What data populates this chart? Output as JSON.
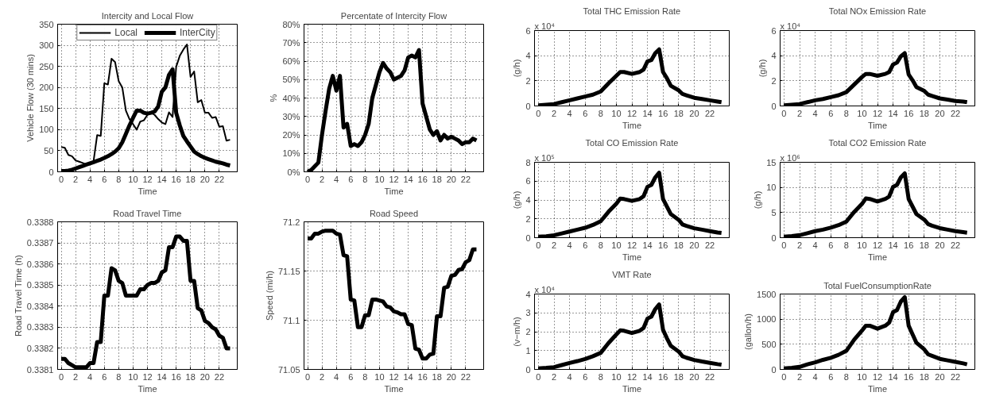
{
  "chart_data": [
    {
      "type": "line",
      "title": "Intercity and Local Flow",
      "xlabel": "Time",
      "ylabel": "Vehicle Flow (30 mins)",
      "legend": "top",
      "grid": true,
      "x": [
        0,
        0.5,
        1,
        1.5,
        2,
        2.5,
        3,
        3.5,
        4,
        4.5,
        5,
        5.5,
        6,
        6.5,
        7,
        7.5,
        8,
        8.5,
        9,
        9.5,
        10,
        10.5,
        11,
        11.5,
        12,
        12.5,
        13,
        13.5,
        14,
        14.5,
        15,
        15.5,
        16,
        16.5,
        17,
        17.5,
        18,
        18.5,
        19,
        19.5,
        20,
        20.5,
        21,
        21.5,
        22,
        22.5,
        23,
        23.5
      ],
      "xlim": [
        -0.5,
        24.5
      ],
      "xticks": [
        0,
        2,
        4,
        6,
        8,
        10,
        12,
        14,
        16,
        18,
        20,
        22
      ],
      "ylim": [
        0,
        350
      ],
      "yticks": [
        0,
        50,
        100,
        150,
        200,
        250,
        300,
        350
      ],
      "series": [
        {
          "name": "Local",
          "color": "#000000",
          "values": [
            59,
            57,
            40,
            37,
            27,
            24,
            21,
            17,
            20,
            25,
            87,
            85,
            210,
            207,
            268,
            260,
            215,
            200,
            145,
            125,
            113,
            100,
            119,
            122,
            135,
            140,
            135,
            125,
            117,
            113,
            141,
            130,
            249,
            275,
            290,
            302,
            225,
            238,
            165,
            170,
            140,
            140,
            128,
            130,
            107,
            108,
            74,
            76
          ]
        },
        {
          "name": "InterCity",
          "color": "#000000",
          "values": [
            2,
            2,
            3,
            5,
            8,
            11,
            14,
            17,
            20,
            23,
            26,
            29,
            33,
            37,
            42,
            48,
            56,
            70,
            90,
            110,
            128,
            145,
            145,
            140,
            138,
            140,
            143,
            155,
            190,
            200,
            230,
            243,
            140,
            110,
            85,
            72,
            60,
            48,
            42,
            37,
            33,
            30,
            27,
            24,
            22,
            20,
            17,
            15
          ]
        }
      ]
    },
    {
      "type": "line",
      "title": "Percentate of Intercity Flow",
      "xlabel": "Time",
      "ylabel": "%",
      "grid": true,
      "x": [
        0,
        0.5,
        1,
        1.5,
        2,
        2.5,
        3,
        3.5,
        4,
        4.5,
        5,
        5.5,
        6,
        6.5,
        7,
        7.5,
        8,
        8.5,
        9,
        9.5,
        10,
        10.5,
        11,
        11.5,
        12,
        12.5,
        13,
        13.5,
        14,
        14.5,
        15,
        15.5,
        16,
        16.5,
        17,
        17.5,
        18,
        18.5,
        19,
        19.5,
        20,
        20.5,
        21,
        21.5,
        22,
        22.5,
        23,
        23.5
      ],
      "xlim": [
        -0.5,
        24.5
      ],
      "xticks": [
        0,
        2,
        4,
        6,
        8,
        10,
        12,
        14,
        16,
        18,
        20,
        22
      ],
      "ylim": [
        0,
        80
      ],
      "yticks": [
        {
          "value": 0,
          "label": "0%"
        },
        {
          "value": 10,
          "label": "10%"
        },
        {
          "value": 20,
          "label": "20%"
        },
        {
          "value": 30,
          "label": "30%"
        },
        {
          "value": 40,
          "label": "40%"
        },
        {
          "value": 50,
          "label": "50%"
        },
        {
          "value": 60,
          "label": "60%"
        },
        {
          "value": 70,
          "label": "70%"
        },
        {
          "value": 80,
          "label": "80%"
        }
      ],
      "series": [
        {
          "color": "#000000",
          "values": [
            0,
            1,
            3,
            5,
            20,
            33,
            45,
            52,
            44,
            52,
            24,
            26,
            14,
            15,
            14,
            16,
            20,
            26,
            40,
            47,
            54,
            59,
            56,
            54,
            50,
            51,
            52,
            55,
            62,
            63,
            62,
            66,
            37,
            30,
            23,
            20,
            22,
            17,
            20,
            18,
            19,
            18,
            17,
            15,
            16,
            16,
            18,
            17
          ]
        }
      ]
    },
    {
      "type": "line",
      "title": "Total THC Emission Rate",
      "xlabel": "Time",
      "ylabel": "(g/h)",
      "grid": true,
      "annotations": [
        "x 10⁴"
      ],
      "x": [
        0,
        1,
        2,
        3,
        4,
        5,
        6,
        7,
        8,
        9,
        10,
        10.5,
        11,
        12,
        13,
        13.5,
        14,
        14.5,
        15,
        15.5,
        16,
        16.5,
        17,
        18,
        18.5,
        19,
        20,
        21,
        22,
        23,
        23.5
      ],
      "xlim": [
        -0.5,
        24.5
      ],
      "xticks": [
        0,
        2,
        4,
        6,
        8,
        10,
        12,
        14,
        16,
        18,
        20,
        22
      ],
      "ylim": [
        0,
        6
      ],
      "yticks": [
        0,
        2,
        4,
        6
      ],
      "series": [
        {
          "color": "#000000",
          "values": [
            0.05,
            0.1,
            0.15,
            0.3,
            0.45,
            0.6,
            0.75,
            0.9,
            1.15,
            1.8,
            2.4,
            2.7,
            2.7,
            2.55,
            2.7,
            2.9,
            3.55,
            3.65,
            4.2,
            4.5,
            2.7,
            2.2,
            1.6,
            1.25,
            0.95,
            0.85,
            0.65,
            0.55,
            0.45,
            0.35,
            0.3
          ]
        }
      ]
    },
    {
      "type": "line",
      "title": "Total NOx Emission Rate",
      "xlabel": "Time",
      "ylabel": "(g/h)",
      "grid": true,
      "annotations": [
        "x 10⁴"
      ],
      "x": [
        0,
        1,
        2,
        3,
        4,
        5,
        6,
        7,
        8,
        9,
        10,
        10.5,
        11,
        12,
        13,
        13.5,
        14,
        14.5,
        15,
        15.5,
        16,
        16.5,
        17,
        18,
        18.5,
        19,
        20,
        21,
        22,
        23,
        23.5
      ],
      "xlim": [
        -0.5,
        24.5
      ],
      "xticks": [
        0,
        2,
        4,
        6,
        8,
        10,
        12,
        14,
        16,
        18,
        20,
        22
      ],
      "ylim": [
        0,
        6
      ],
      "yticks": [
        0,
        2,
        4,
        6
      ],
      "series": [
        {
          "color": "#000000",
          "values": [
            0.05,
            0.1,
            0.15,
            0.3,
            0.45,
            0.55,
            0.7,
            0.85,
            1.1,
            1.7,
            2.3,
            2.55,
            2.55,
            2.4,
            2.55,
            2.7,
            3.3,
            3.45,
            3.95,
            4.2,
            2.5,
            2.05,
            1.5,
            1.2,
            0.9,
            0.8,
            0.6,
            0.5,
            0.4,
            0.35,
            0.3
          ]
        }
      ]
    },
    {
      "type": "line",
      "title": "Road Travel Time",
      "xlabel": "Time",
      "ylabel": "Road Travel Time (h)",
      "grid": true,
      "x": [
        0,
        0.5,
        1,
        1.5,
        2,
        2.5,
        3,
        3.5,
        4,
        4.5,
        5,
        5.5,
        6,
        6.5,
        7,
        7.5,
        8,
        8.5,
        9,
        9.5,
        10,
        10.5,
        11,
        11.5,
        12,
        12.5,
        13,
        13.5,
        14,
        14.5,
        15,
        15.5,
        16,
        16.5,
        17,
        17.5,
        18,
        18.5,
        19,
        19.5,
        20,
        20.5,
        21,
        21.5,
        22,
        22.5,
        23,
        23.5
      ],
      "xlim": [
        -0.5,
        24.5
      ],
      "xticks": [
        0,
        2,
        4,
        6,
        8,
        10,
        12,
        14,
        16,
        18,
        20,
        22
      ],
      "ylim": [
        0.3381,
        0.3388
      ],
      "yticks": [
        0.3381,
        0.3382,
        0.3383,
        0.3384,
        0.3385,
        0.3386,
        0.3387,
        0.3388
      ],
      "series": [
        {
          "color": "#000000",
          "values": [
            0.33815,
            0.33815,
            0.33813,
            0.33812,
            0.33811,
            0.33811,
            0.33811,
            0.33811,
            0.33813,
            0.33813,
            0.33823,
            0.33823,
            0.33845,
            0.33845,
            0.33858,
            0.33857,
            0.33852,
            0.33851,
            0.33845,
            0.33845,
            0.33845,
            0.33845,
            0.33848,
            0.33848,
            0.3385,
            0.33851,
            0.33851,
            0.33852,
            0.33856,
            0.33857,
            0.33868,
            0.33868,
            0.33873,
            0.33873,
            0.33871,
            0.33871,
            0.33852,
            0.33852,
            0.33839,
            0.33838,
            0.33833,
            0.33832,
            0.3383,
            0.33829,
            0.33826,
            0.33825,
            0.3382,
            0.3382
          ]
        }
      ]
    },
    {
      "type": "line",
      "title": "Road Speed",
      "xlabel": "Time",
      "ylabel": "Speed (mi/h)",
      "grid": true,
      "x": [
        0,
        0.5,
        1,
        1.5,
        2,
        2.5,
        3,
        3.5,
        4,
        4.5,
        5,
        5.5,
        6,
        6.5,
        7,
        7.5,
        8,
        8.5,
        9,
        9.5,
        10,
        10.5,
        11,
        11.5,
        12,
        12.5,
        13,
        13.5,
        14,
        14.5,
        15,
        15.5,
        16,
        16.5,
        17,
        17.5,
        18,
        18.5,
        19,
        19.5,
        20,
        20.5,
        21,
        21.5,
        22,
        22.5,
        23,
        23.5
      ],
      "xlim": [
        -0.5,
        24.5
      ],
      "xticks": [
        0,
        2,
        4,
        6,
        8,
        10,
        12,
        14,
        16,
        18,
        20,
        22
      ],
      "ylim": [
        71.05,
        71.2
      ],
      "yticks": [
        71.05,
        71.1,
        71.15,
        71.2
      ],
      "series": [
        {
          "color": "#000000",
          "values": [
            71.183,
            71.183,
            71.188,
            71.188,
            71.19,
            71.191,
            71.191,
            71.191,
            71.188,
            71.187,
            71.166,
            71.165,
            71.121,
            71.12,
            71.093,
            71.093,
            71.105,
            71.105,
            71.121,
            71.121,
            71.12,
            71.119,
            71.114,
            71.113,
            71.109,
            71.108,
            71.106,
            71.106,
            71.096,
            71.095,
            71.071,
            71.07,
            71.061,
            71.061,
            71.065,
            71.066,
            71.104,
            71.104,
            71.133,
            71.134,
            71.145,
            71.146,
            71.151,
            71.152,
            71.159,
            71.161,
            71.172,
            71.172
          ]
        }
      ]
    },
    {
      "type": "line",
      "title": "Total CO Emission Rate",
      "xlabel": "Time",
      "ylabel": "(g/h)",
      "grid": true,
      "annotations": [
        "x 10⁵"
      ],
      "x": [
        0,
        1,
        2,
        3,
        4,
        5,
        6,
        7,
        8,
        9,
        10,
        10.5,
        11,
        12,
        13,
        13.5,
        14,
        14.5,
        15,
        15.5,
        16,
        16.5,
        17,
        18,
        18.5,
        19,
        20,
        21,
        22,
        23,
        23.5
      ],
      "xlim": [
        -0.5,
        24.5
      ],
      "xticks": [
        0,
        2,
        4,
        6,
        8,
        10,
        12,
        14,
        16,
        18,
        20,
        22
      ],
      "ylim": [
        0,
        8
      ],
      "yticks": [
        0,
        2,
        4,
        6,
        8
      ],
      "series": [
        {
          "color": "#000000",
          "values": [
            0.1,
            0.15,
            0.25,
            0.45,
            0.65,
            0.85,
            1.05,
            1.35,
            1.75,
            2.75,
            3.6,
            4.15,
            4.1,
            3.9,
            4.1,
            4.4,
            5.4,
            5.6,
            6.4,
            6.9,
            4.1,
            3.3,
            2.5,
            1.9,
            1.4,
            1.25,
            1.0,
            0.85,
            0.7,
            0.55,
            0.5
          ]
        }
      ]
    },
    {
      "type": "line",
      "title": "Total CO2 Emission Rate",
      "xlabel": "Time",
      "ylabel": "(g/h)",
      "grid": true,
      "annotations": [
        "x 10⁶"
      ],
      "x": [
        0,
        1,
        2,
        3,
        4,
        5,
        6,
        7,
        8,
        9,
        10,
        10.5,
        11,
        12,
        13,
        13.5,
        14,
        14.5,
        15,
        15.5,
        16,
        16.5,
        17,
        18,
        18.5,
        19,
        20,
        21,
        22,
        23,
        23.5
      ],
      "xlim": [
        -0.5,
        24.5
      ],
      "xticks": [
        0,
        2,
        4,
        6,
        8,
        10,
        12,
        14,
        16,
        18,
        20,
        22
      ],
      "ylim": [
        0,
        15
      ],
      "yticks": [
        0,
        5,
        10,
        15
      ],
      "series": [
        {
          "color": "#000000",
          "values": [
            0.2,
            0.3,
            0.5,
            0.9,
            1.3,
            1.6,
            2.0,
            2.5,
            3.2,
            5.1,
            6.7,
            7.8,
            7.7,
            7.2,
            7.7,
            8.2,
            10.1,
            10.5,
            12.0,
            12.8,
            7.7,
            6.2,
            4.7,
            3.6,
            2.7,
            2.4,
            1.9,
            1.6,
            1.3,
            1.1,
            1.0
          ]
        }
      ]
    },
    {
      "type": "line",
      "title": "VMT Rate",
      "xlabel": "Time",
      "ylabel": "(v−m/h)",
      "grid": true,
      "annotations": [
        "x 10⁴"
      ],
      "x": [
        0,
        1,
        2,
        3,
        4,
        5,
        6,
        7,
        8,
        9,
        10,
        10.5,
        11,
        12,
        13,
        13.5,
        14,
        14.5,
        15,
        15.5,
        16,
        16.5,
        17,
        18,
        18.5,
        19,
        20,
        21,
        22,
        23,
        23.5
      ],
      "xlim": [
        -0.5,
        24.5
      ],
      "xticks": [
        0,
        2,
        4,
        6,
        8,
        10,
        12,
        14,
        16,
        18,
        20,
        22
      ],
      "ylim": [
        0,
        4
      ],
      "yticks": [
        0,
        1,
        2,
        3,
        4
      ],
      "series": [
        {
          "color": "#000000",
          "values": [
            0.05,
            0.08,
            0.12,
            0.23,
            0.34,
            0.44,
            0.55,
            0.7,
            0.88,
            1.4,
            1.85,
            2.07,
            2.05,
            1.93,
            2.05,
            2.2,
            2.7,
            2.8,
            3.2,
            3.45,
            2.1,
            1.65,
            1.25,
            0.95,
            0.7,
            0.62,
            0.5,
            0.42,
            0.35,
            0.28,
            0.25
          ]
        }
      ]
    },
    {
      "type": "line",
      "title": "Total FuelConsumptionRate",
      "xlabel": "Time",
      "ylabel": "(gallon/h)",
      "grid": true,
      "x": [
        0,
        1,
        2,
        3,
        4,
        5,
        6,
        7,
        8,
        9,
        10,
        10.5,
        11,
        12,
        13,
        13.5,
        14,
        14.5,
        15,
        15.5,
        16,
        16.5,
        17,
        18,
        18.5,
        19,
        20,
        21,
        22,
        23,
        23.5
      ],
      "xlim": [
        -0.5,
        24.5
      ],
      "xticks": [
        0,
        2,
        4,
        6,
        8,
        10,
        12,
        14,
        16,
        18,
        20,
        22
      ],
      "ylim": [
        0,
        1500
      ],
      "yticks": [
        0,
        500,
        1000,
        1500
      ],
      "series": [
        {
          "color": "#000000",
          "values": [
            20,
            30,
            50,
            100,
            140,
            190,
            230,
            290,
            370,
            590,
            770,
            870,
            870,
            810,
            870,
            930,
            1140,
            1180,
            1350,
            1440,
            870,
            700,
            530,
            400,
            300,
            270,
            210,
            180,
            150,
            120,
            100
          ]
        }
      ]
    }
  ]
}
